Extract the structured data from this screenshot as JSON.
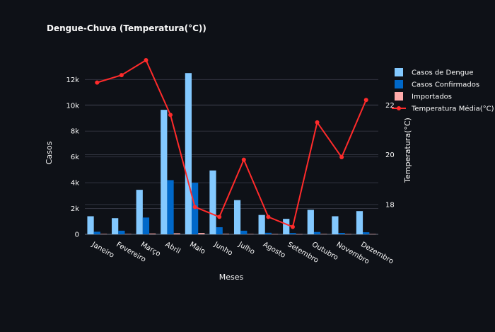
{
  "chart_data": {
    "type": "bar",
    "title": "Dengue-Chuva (Temperatura(°C))",
    "xlabel": "Meses",
    "ylabel": "Casos",
    "y2label": "Temperatura(°C)",
    "categories": [
      "Janeiro",
      "Fevereiro",
      "Março",
      "Abril",
      "Maio",
      "Junho",
      "Julho",
      "Agosto",
      "Setembro",
      "Outubro",
      "Novembro",
      "Dezembro"
    ],
    "ylim": [
      0,
      13500
    ],
    "y_ticks": [
      0,
      2000,
      4000,
      6000,
      8000,
      10000,
      12000
    ],
    "y_tick_labels": [
      "0",
      "2k",
      "4k",
      "6k",
      "8k",
      "10k",
      "12k"
    ],
    "y2lim": [
      16.8,
      23.8
    ],
    "y2_ticks": [
      18,
      20,
      22
    ],
    "y2_tick_labels": [
      "18",
      "20",
      "22"
    ],
    "grid": true,
    "legend_position": "top-right",
    "series": [
      {
        "name": "Casos de Dengue",
        "kind": "bar",
        "color": "#83c9ff",
        "values": [
          1400,
          1250,
          3450,
          9650,
          12500,
          4950,
          2650,
          1500,
          1200,
          1900,
          1400,
          1800
        ]
      },
      {
        "name": "Casos Confirmados",
        "kind": "bar",
        "color": "#0068c9",
        "values": [
          200,
          280,
          1300,
          4200,
          4000,
          550,
          280,
          120,
          100,
          180,
          110,
          160
        ]
      },
      {
        "name": "Importados",
        "kind": "bar",
        "color": "#ffabab",
        "values": [
          30,
          30,
          60,
          80,
          100,
          40,
          25,
          20,
          15,
          25,
          20,
          20
        ]
      },
      {
        "name": "Temperatura Média(°C)",
        "kind": "line",
        "axis": "y2",
        "color": "#ff2b2b",
        "values": [
          22.9,
          23.2,
          23.8,
          21.6,
          17.9,
          17.5,
          19.8,
          17.5,
          17.1,
          21.3,
          19.9,
          22.2
        ]
      }
    ]
  }
}
